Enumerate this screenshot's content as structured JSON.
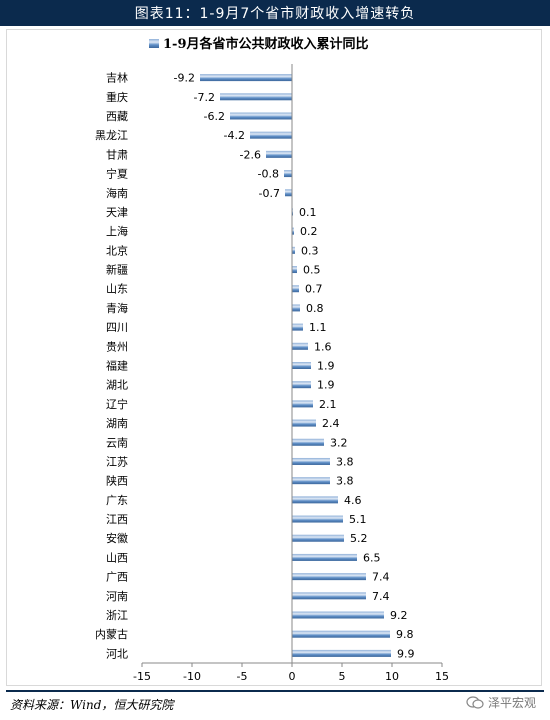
{
  "header": {
    "title": "图表11：1-9月7个省市财政收入增速转负"
  },
  "footer": {
    "source": "资料来源：Wind，恒大研究院",
    "watermark": "泽平宏观"
  },
  "colors": {
    "bar": "#4a78ad",
    "bar_highlight": "#a9c4e4",
    "header_bg": "#0b2a4d"
  },
  "chart_data": {
    "type": "bar",
    "orientation": "horizontal",
    "legend": "1-9月各省市公共财政收入累计同比",
    "legend_position": "top",
    "categories": [
      "吉林",
      "重庆",
      "西藏",
      "黑龙江",
      "甘肃",
      "宁夏",
      "海南",
      "天津",
      "上海",
      "北京",
      "新疆",
      "山东",
      "青海",
      "四川",
      "贵州",
      "福建",
      "湖北",
      "辽宁",
      "湖南",
      "云南",
      "江苏",
      "陕西",
      "广东",
      "江西",
      "安徽",
      "山西",
      "广西",
      "河南",
      "浙江",
      "内蒙古",
      "河北"
    ],
    "values": [
      -9.2,
      -7.2,
      -6.2,
      -4.2,
      -2.6,
      -0.8,
      -0.7,
      0.1,
      0.2,
      0.3,
      0.5,
      0.7,
      0.8,
      1.1,
      1.6,
      1.9,
      1.9,
      2.1,
      2.4,
      3.2,
      3.8,
      3.8,
      4.6,
      5.1,
      5.2,
      6.5,
      7.4,
      7.4,
      9.2,
      9.8,
      9.9
    ],
    "xlim": [
      -15,
      15
    ],
    "xticks": [
      "-15",
      "-10",
      "-5",
      "0",
      "5",
      "10",
      "15"
    ],
    "grid": false
  }
}
